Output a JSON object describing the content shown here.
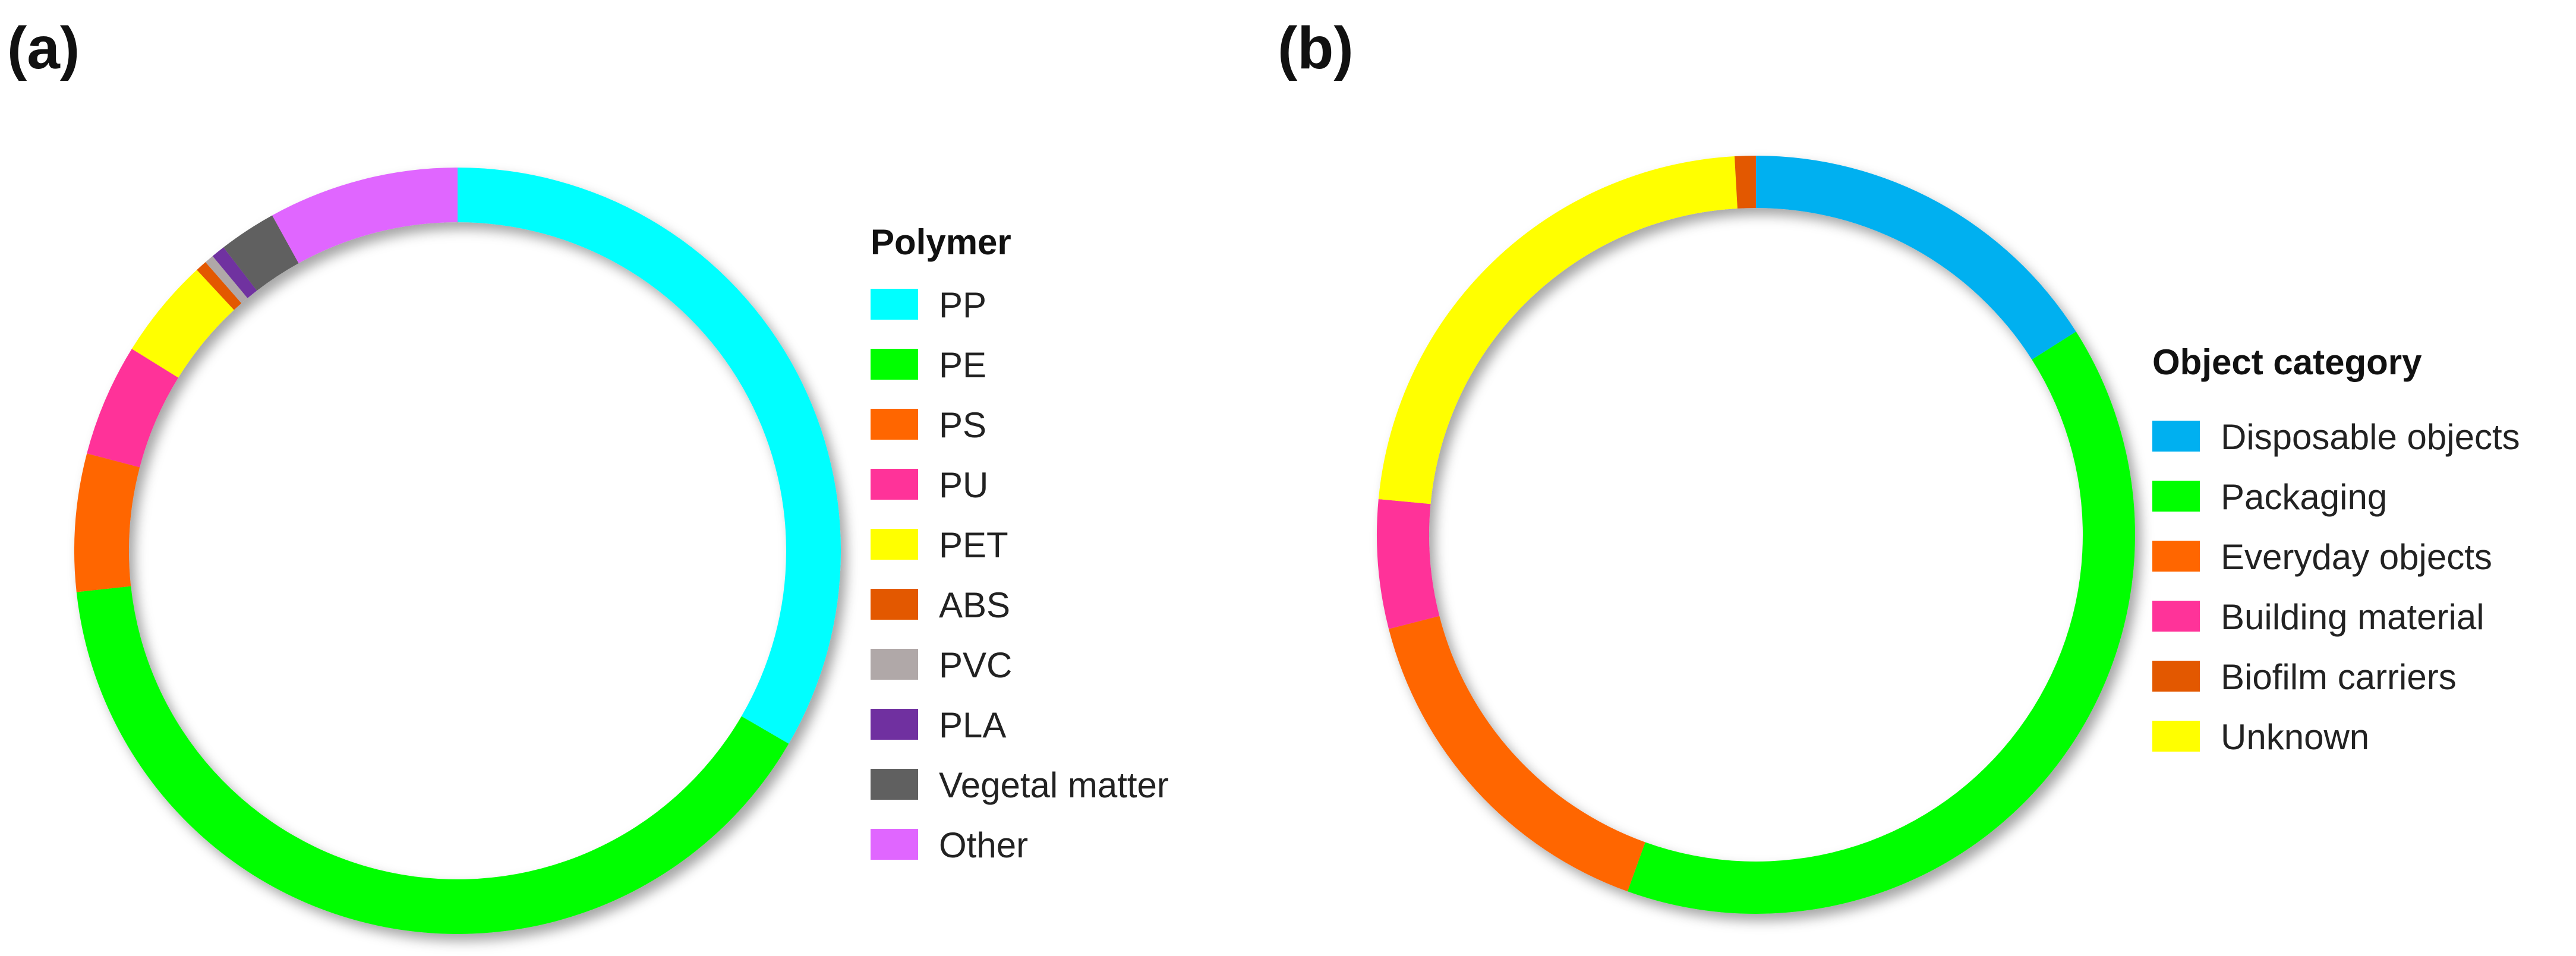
{
  "chart_data": [
    {
      "type": "pie",
      "panel_label": "(a)",
      "legend_title": "Polymer",
      "legend_placement": "right",
      "categories": [
        "PP",
        "PE",
        "PS",
        "PU",
        "PET",
        "ABS",
        "PVC",
        "PLA",
        "Vegetal matter",
        "Other"
      ],
      "values": [
        34.5,
        41.2,
        6.0,
        4.9,
        4.4,
        0.5,
        0.4,
        0.6,
        2.5,
        8.3
      ],
      "colors": [
        "#00FFFF",
        "#00FF00",
        "#FF6600",
        "#FF3399",
        "#FFFF00",
        "#E35800",
        "#B0A8A8",
        "#7030A0",
        "#606060",
        "#E066FF"
      ],
      "start_angle_deg": 0,
      "draw_order": [
        0,
        1,
        2,
        3,
        4,
        5,
        6,
        7,
        8,
        9
      ]
    },
    {
      "type": "pie",
      "panel_label": "(b)",
      "legend_title": "Object category",
      "legend_placement": "right",
      "categories": [
        "Disposable objects",
        "Packaging",
        "Everyday objects",
        "Building material",
        "Biofilm carriers",
        "Unknown"
      ],
      "values": [
        16.0,
        39.5,
        15.5,
        5.5,
        0.9,
        22.6
      ],
      "colors": [
        "#00B0F0",
        "#00FF00",
        "#FF6600",
        "#FF3399",
        "#E35800",
        "#FFFF00"
      ],
      "start_angle_deg": 0,
      "draw_order": [
        0,
        1,
        2,
        3,
        5,
        4
      ]
    }
  ]
}
